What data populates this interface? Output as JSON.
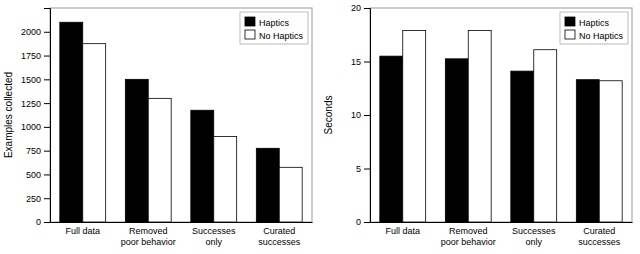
{
  "chart_data": [
    {
      "type": "bar",
      "categories": [
        "Full data",
        "Removed\npoor behavior",
        "Successes\nonly",
        "Curated\nsuccesses"
      ],
      "series": [
        {
          "name": "Haptics",
          "color": "#000000",
          "values": [
            2100,
            1500,
            1175,
            775
          ]
        },
        {
          "name": "No Haptics",
          "color": "#ffffff",
          "values": [
            1875,
            1300,
            900,
            575
          ]
        }
      ],
      "ylabel": "Examples collected",
      "ylim": [
        0,
        2250
      ],
      "yticks": [
        0,
        250,
        500,
        750,
        1000,
        1250,
        1500,
        1750,
        2000
      ],
      "legend": "upper right"
    },
    {
      "type": "bar",
      "categories": [
        "Full data",
        "Removed\npoor behavior",
        "Successes\nonly",
        "Curated\nsuccesses"
      ],
      "series": [
        {
          "name": "Haptics",
          "color": "#000000",
          "values": [
            15.5,
            15.25,
            14.1,
            13.3
          ]
        },
        {
          "name": "No Haptics",
          "color": "#ffffff",
          "values": [
            17.9,
            17.9,
            16.1,
            13.2
          ]
        }
      ],
      "ylabel": "Seconds",
      "ylim": [
        0,
        20
      ],
      "yticks": [
        0,
        5,
        10,
        15,
        20
      ],
      "legend": "upper right"
    }
  ]
}
